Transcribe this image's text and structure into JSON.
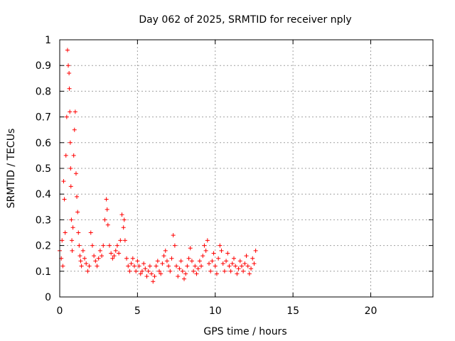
{
  "chart_data": {
    "type": "scatter",
    "title": "Day 062 of 2025, SRMTID for receiver nply",
    "xlabel": "GPS time / hours",
    "ylabel": "SRMTID / TECUs",
    "xlim": [
      0,
      24
    ],
    "ylim": [
      0,
      1
    ],
    "xticks": [
      0,
      5,
      10,
      15,
      20
    ],
    "xtick_labels": [
      "0",
      "5",
      "10",
      "15",
      "20"
    ],
    "yticks": [
      0,
      0.1,
      0.2,
      0.3,
      0.4,
      0.5,
      0.6,
      0.7,
      0.8,
      0.9,
      1
    ],
    "ytick_labels": [
      "0",
      "0.1",
      "0.2",
      "0.3",
      "0.4",
      "0.5",
      "0.6",
      "0.7",
      "0.8",
      "0.9",
      "1"
    ],
    "grid": true,
    "marker": "plus",
    "color": "#ff0000",
    "series": [
      {
        "name": "SRMTID",
        "x": [
          0.0,
          0.1,
          0.15,
          0.2,
          0.25,
          0.3,
          0.35,
          0.4,
          0.45,
          0.5,
          0.55,
          0.6,
          0.62,
          0.65,
          0.68,
          0.7,
          0.72,
          0.75,
          0.78,
          0.8,
          0.85,
          0.9,
          0.95,
          1.0,
          1.05,
          1.1,
          1.15,
          1.2,
          1.25,
          1.3,
          1.35,
          1.4,
          1.5,
          1.6,
          1.7,
          1.8,
          1.9,
          2.0,
          2.1,
          2.2,
          2.3,
          2.4,
          2.5,
          2.6,
          2.7,
          2.8,
          2.9,
          3.0,
          3.05,
          3.1,
          3.2,
          3.3,
          3.4,
          3.5,
          3.6,
          3.7,
          3.8,
          3.9,
          4.0,
          4.1,
          4.15,
          4.2,
          4.3,
          4.4,
          4.5,
          4.6,
          4.7,
          4.8,
          4.9,
          5.0,
          5.1,
          5.2,
          5.3,
          5.4,
          5.5,
          5.6,
          5.7,
          5.8,
          5.9,
          6.0,
          6.1,
          6.2,
          6.3,
          6.4,
          6.5,
          6.6,
          6.7,
          6.8,
          6.9,
          7.0,
          7.1,
          7.2,
          7.3,
          7.4,
          7.5,
          7.6,
          7.7,
          7.8,
          7.9,
          8.0,
          8.1,
          8.2,
          8.3,
          8.4,
          8.5,
          8.6,
          8.7,
          8.8,
          8.9,
          9.0,
          9.1,
          9.2,
          9.3,
          9.4,
          9.5,
          9.6,
          9.7,
          9.8,
          9.9,
          10.0,
          10.1,
          10.2,
          10.3,
          10.4,
          10.5,
          10.6,
          10.7,
          10.8,
          10.9,
          11.0,
          11.1,
          11.2,
          11.3,
          11.4,
          11.5,
          11.6,
          11.7,
          11.8,
          11.9,
          12.0,
          12.1,
          12.2,
          12.3,
          12.4,
          12.5,
          12.6
        ],
        "y": [
          0.18,
          0.15,
          0.22,
          0.12,
          0.45,
          0.38,
          0.25,
          0.55,
          0.7,
          0.96,
          0.9,
          0.87,
          0.81,
          0.72,
          0.6,
          0.5,
          0.43,
          0.3,
          0.22,
          0.18,
          0.27,
          0.55,
          0.65,
          0.72,
          0.48,
          0.39,
          0.33,
          0.25,
          0.2,
          0.16,
          0.14,
          0.12,
          0.18,
          0.15,
          0.13,
          0.1,
          0.12,
          0.25,
          0.2,
          0.16,
          0.14,
          0.12,
          0.15,
          0.18,
          0.16,
          0.2,
          0.3,
          0.38,
          0.34,
          0.28,
          0.2,
          0.17,
          0.15,
          0.16,
          0.18,
          0.2,
          0.17,
          0.22,
          0.32,
          0.27,
          0.3,
          0.22,
          0.15,
          0.12,
          0.1,
          0.13,
          0.15,
          0.12,
          0.1,
          0.14,
          0.12,
          0.09,
          0.1,
          0.13,
          0.11,
          0.08,
          0.1,
          0.12,
          0.09,
          0.06,
          0.08,
          0.12,
          0.14,
          0.1,
          0.09,
          0.13,
          0.16,
          0.18,
          0.14,
          0.12,
          0.1,
          0.15,
          0.24,
          0.2,
          0.12,
          0.08,
          0.11,
          0.14,
          0.1,
          0.07,
          0.09,
          0.12,
          0.15,
          0.19,
          0.14,
          0.1,
          0.12,
          0.09,
          0.11,
          0.14,
          0.12,
          0.16,
          0.2,
          0.18,
          0.22,
          0.13,
          0.1,
          0.14,
          0.17,
          0.12,
          0.09,
          0.15,
          0.2,
          0.18,
          0.13,
          0.1,
          0.14,
          0.17,
          0.12,
          0.1,
          0.13,
          0.15,
          0.12,
          0.09,
          0.11,
          0.14,
          0.12,
          0.1,
          0.13,
          0.16,
          0.12,
          0.09,
          0.11,
          0.15,
          0.13,
          0.18
        ]
      }
    ]
  }
}
